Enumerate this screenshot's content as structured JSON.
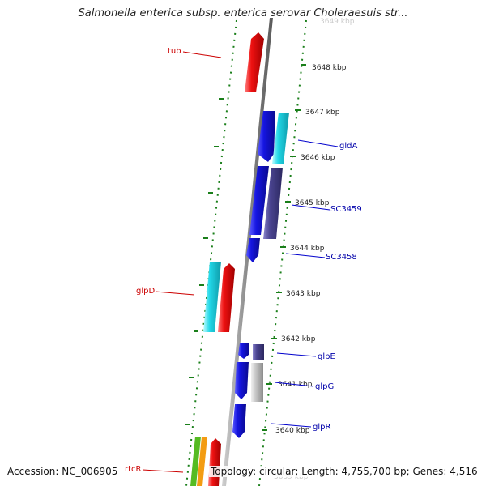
{
  "title": "Salmonella enterica subsp. enterica serovar Choleraesuis str...",
  "footer": {
    "accession": "Accession: NC_006905",
    "topology": "Topology: circular; Length: 4,755,700 bp; Genes: 4,516"
  },
  "map": {
    "ticks": [
      {
        "label": "3649 kbp",
        "faded": true
      },
      {
        "label": "3648 kbp"
      },
      {
        "label": "3647 kbp"
      },
      {
        "label": "3646 kbp"
      },
      {
        "label": "3645 kbp"
      },
      {
        "label": "3644 kbp"
      },
      {
        "label": "3643 kbp"
      },
      {
        "label": "3642 kbp"
      },
      {
        "label": "3641 kbp"
      },
      {
        "label": "3640 kbp"
      },
      {
        "label": "3639 kbp",
        "faded": true
      }
    ],
    "left_labels": [
      {
        "text": "tub",
        "color": "#cc0000"
      },
      {
        "text": "glpD",
        "color": "#cc0000"
      },
      {
        "text": "rtcR",
        "color": "#cc0000"
      }
    ],
    "right_labels": [
      {
        "text": "gldA",
        "color": "#0000aa"
      },
      {
        "text": "SC3459",
        "color": "#0000aa"
      },
      {
        "text": "SC3458",
        "color": "#0000aa"
      },
      {
        "text": "glpE",
        "color": "#0000aa"
      },
      {
        "text": "glpG",
        "color": "#0000aa"
      },
      {
        "text": "glpR",
        "color": "#0000aa"
      }
    ],
    "colors": {
      "backbone": "#8a8a8a",
      "dots": "#1a7f1a",
      "forward": "#ee1111",
      "reverse": "#1515e0",
      "cyan": "#22d8e8",
      "slate": "#4a4490",
      "grey": "#c4c4c4",
      "green": "#55bb22",
      "orange": "#f39c12"
    }
  }
}
